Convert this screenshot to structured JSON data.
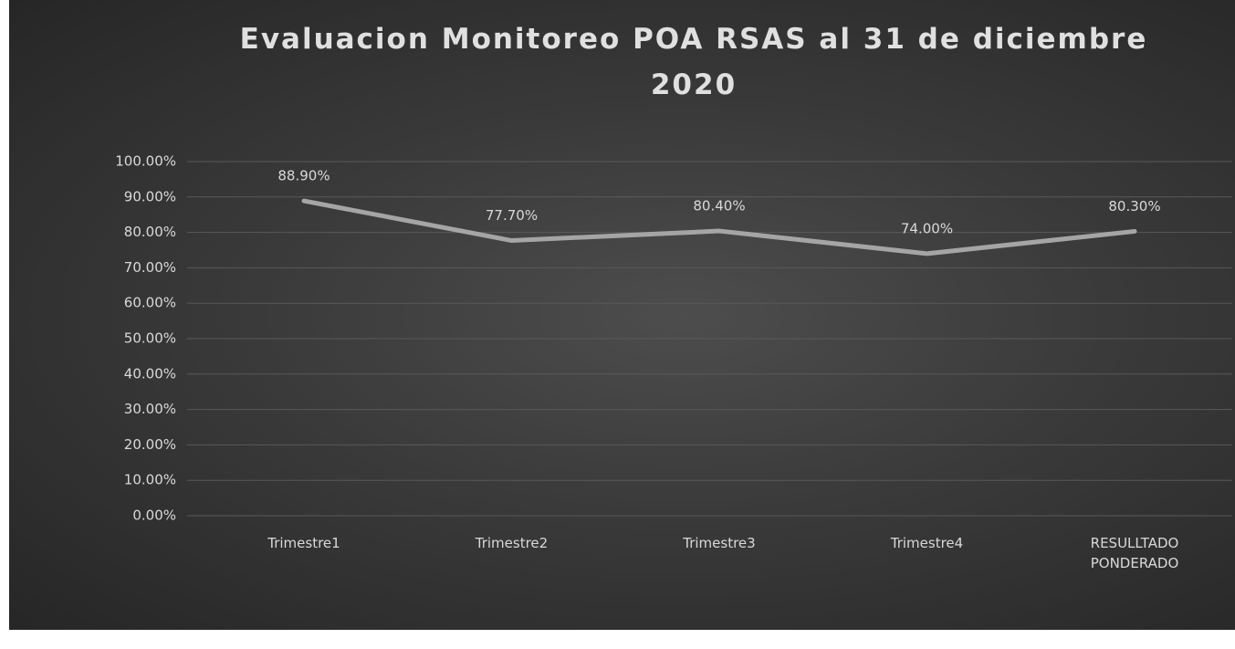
{
  "chart_data": {
    "type": "line",
    "title": "Evaluacion Monitoreo POA RSAS al 31 de diciembre 2020",
    "categories": [
      "Trimestre1",
      "Trimestre2",
      "Trimestre3",
      "Trimestre4",
      "RESULLTADO PONDERADO"
    ],
    "values": [
      88.9,
      77.7,
      80.4,
      74.0,
      80.3
    ],
    "value_labels": [
      "88.90%",
      "77.70%",
      "80.40%",
      "74.00%",
      "80.30%"
    ],
    "color": "#a5a5a5",
    "ylim": [
      0,
      100
    ],
    "yticks": [
      {
        "value": 0,
        "label": "0.00%"
      },
      {
        "value": 10,
        "label": "10.00%"
      },
      {
        "value": 20,
        "label": "20.00%"
      },
      {
        "value": 30,
        "label": "30.00%"
      },
      {
        "value": 40,
        "label": "40.00%"
      },
      {
        "value": 50,
        "label": "50.00%"
      },
      {
        "value": 60,
        "label": "60.00%"
      },
      {
        "value": 70,
        "label": "70.00%"
      },
      {
        "value": 80,
        "label": "80.00%"
      },
      {
        "value": 90,
        "label": "90.00%"
      },
      {
        "value": 100,
        "label": "100.00%"
      }
    ],
    "grid": true
  }
}
